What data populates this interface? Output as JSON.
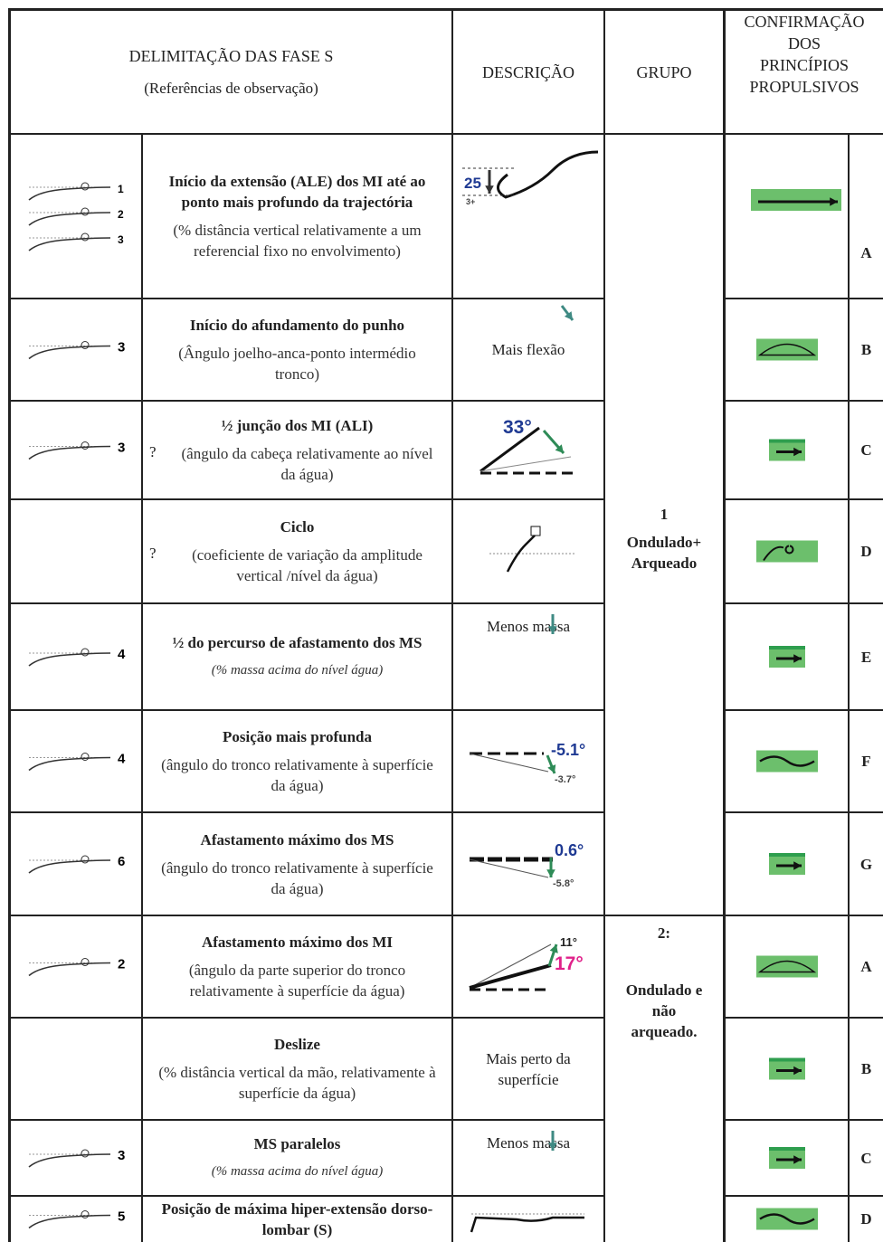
{
  "header": {
    "phases_title": "DELIMITAÇÃO DAS FASE S",
    "phases_subtitle": "(Referências de observação)",
    "description": "DESCRIÇÃO",
    "group": "GRUPO",
    "confirmation": [
      "CONFIRMAÇÃO",
      "DOS",
      "PRINCÍPIOS",
      "PROPULSIVOS"
    ]
  },
  "groups": [
    {
      "number": "1",
      "name": "Ondulado+ Arqueado"
    },
    {
      "number": "2:",
      "name": "Ondulado e não arqueado."
    }
  ],
  "rows": [
    {
      "icon_labels": [
        "1",
        "2",
        "3"
      ],
      "title": "Início da extensão (ALE) dos MI até ao ponto mais profundo da trajectória",
      "note": "(% distância vertical relativamente a um referencial fixo no envolvimento)",
      "figure_labels": [
        "25",
        "3+"
      ],
      "letter": "A"
    },
    {
      "icon_labels": [
        "3"
      ],
      "title": "Início do afundamento do punho",
      "note": "(Ângulo joelho-anca-ponto intermédio tronco)",
      "description": "Mais flexão",
      "letter": "B"
    },
    {
      "icon_labels": [
        "3"
      ],
      "title": "½ junção dos MI (ALI)",
      "marker": "?",
      "note": "(ângulo da cabeça relativamente ao nível da água)",
      "figure_labels": [
        "33°"
      ],
      "letter": "C"
    },
    {
      "title": "Ciclo",
      "marker": "?",
      "note": "(coeficiente de variação da amplitude vertical /nível da água)",
      "letter": "D"
    },
    {
      "icon_labels": [
        "4"
      ],
      "title": "½ do percurso de afastamento dos MS",
      "note": "(% massa acima do nível água)",
      "description": "Menos massa",
      "letter": "E"
    },
    {
      "icon_labels": [
        "4"
      ],
      "title": "Posição mais profunda",
      "note": "(ângulo do tronco relativamente à superfície da água)",
      "figure_labels": [
        "-5.1°",
        "-3.7°"
      ],
      "letter": "F"
    },
    {
      "icon_labels": [
        "6"
      ],
      "title": "Afastamento máximo dos MS",
      "note": "(ângulo do tronco relativamente à superfície da água)",
      "figure_labels": [
        "0.6°",
        "-5.8°"
      ],
      "letter": "G"
    },
    {
      "icon_labels": [
        "2"
      ],
      "title": "Afastamento máximo dos MI",
      "note": "(ângulo da parte superior do  tronco relativamente à superfície da água)",
      "figure_labels": [
        "11°",
        "17°"
      ],
      "letter": "A"
    },
    {
      "title": "Deslize",
      "note": "(% distância vertical da mão, relativamente à superfície da água)",
      "description": "Mais perto da superfície",
      "letter": "B"
    },
    {
      "icon_labels": [
        "3"
      ],
      "title": "MS paralelos",
      "note": "(% massa acima do nível água)",
      "description": "Menos massa",
      "letter": "C"
    },
    {
      "icon_labels": [
        "5"
      ],
      "title": "Posição de máxima hiper-extensão dorso-lombar (S)",
      "letter": "D"
    }
  ]
}
